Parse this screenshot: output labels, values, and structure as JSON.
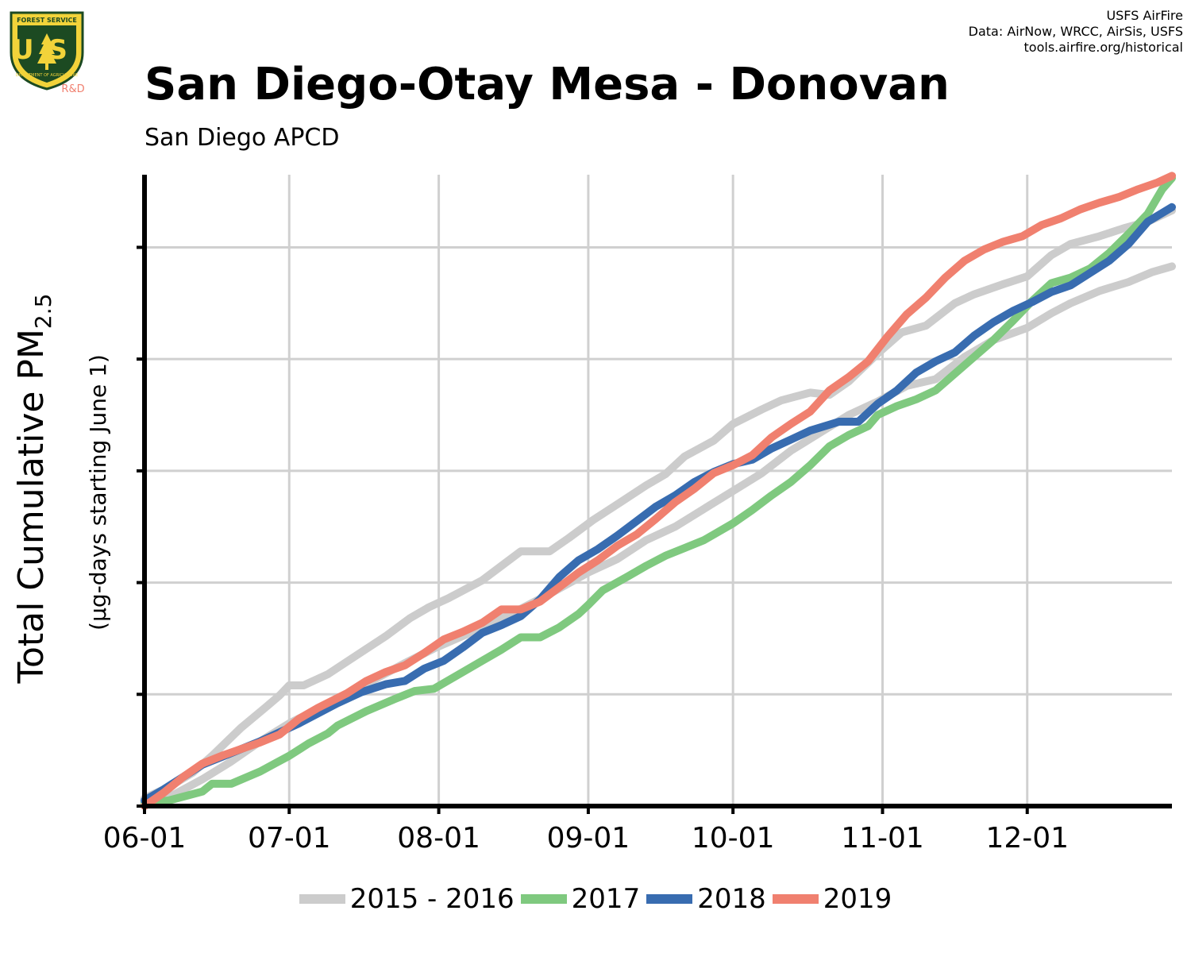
{
  "header": {
    "title": "San Diego-Otay Mesa - Donovan",
    "subtitle": "San Diego APCD",
    "credits": [
      "USFS AirFire",
      "Data: AirNow, WRCC, AirSis, USFS",
      "tools.airfire.org/historical"
    ]
  },
  "logo": {
    "top_text": "FOREST SERVICE",
    "initials": "US",
    "bottom_text": "DEPARTMENT OF AGRICULTURE",
    "tag": "R&D"
  },
  "chart_data": {
    "type": "line",
    "title": "San Diego-Otay Mesa - Donovan",
    "subtitle": "San Diego APCD",
    "ylabel": "Total Cumulative PM",
    "ylabel_sub": "2.5",
    "ylabel_note": "(µg-days starting June 1)",
    "x_ticks": [
      "06-01",
      "07-01",
      "08-01",
      "09-01",
      "10-01",
      "11-01",
      "12-01"
    ],
    "x_tick_days": [
      0,
      30,
      61,
      92,
      122,
      153,
      183
    ],
    "x_range_days": [
      0,
      213
    ],
    "y_range": [
      0,
      5.65
    ],
    "y_ticks": [
      0,
      1,
      2,
      3,
      4,
      5
    ],
    "y_tick_labels_shown": false,
    "grid": true,
    "legend_position": "bottom",
    "series": [
      {
        "name": "2015 - 2016",
        "color": "#cccccc",
        "points": [
          [
            0,
            0.07
          ],
          [
            5,
            0.17
          ],
          [
            10,
            0.3
          ],
          [
            14,
            0.45
          ],
          [
            20,
            0.7
          ],
          [
            25,
            0.88
          ],
          [
            28,
            0.99
          ],
          [
            30,
            1.08
          ],
          [
            33,
            1.08
          ],
          [
            38,
            1.18
          ],
          [
            44,
            1.35
          ],
          [
            50,
            1.52
          ],
          [
            55,
            1.68
          ],
          [
            59,
            1.78
          ],
          [
            63,
            1.86
          ],
          [
            70,
            2.02
          ],
          [
            78,
            2.28
          ],
          [
            84,
            2.28
          ],
          [
            88,
            2.4
          ],
          [
            93,
            2.56
          ],
          [
            98,
            2.7
          ],
          [
            104,
            2.87
          ],
          [
            108,
            2.97
          ],
          [
            112,
            3.13
          ],
          [
            118,
            3.27
          ],
          [
            122,
            3.42
          ],
          [
            128,
            3.55
          ],
          [
            132,
            3.63
          ],
          [
            138,
            3.7
          ],
          [
            142,
            3.68
          ],
          [
            146,
            3.8
          ],
          [
            152,
            4.05
          ],
          [
            157,
            4.24
          ],
          [
            162,
            4.3
          ],
          [
            168,
            4.5
          ],
          [
            172,
            4.58
          ],
          [
            178,
            4.67
          ],
          [
            183,
            4.74
          ],
          [
            188,
            4.93
          ],
          [
            192,
            5.03
          ],
          [
            198,
            5.1
          ],
          [
            203,
            5.17
          ],
          [
            208,
            5.23
          ],
          [
            213,
            5.33
          ]
        ]
      },
      {
        "name": "2015 - 2016",
        "color": "#cccccc",
        "points": [
          [
            0,
            0.03
          ],
          [
            6,
            0.1
          ],
          [
            12,
            0.24
          ],
          [
            18,
            0.4
          ],
          [
            24,
            0.58
          ],
          [
            30,
            0.74
          ],
          [
            36,
            0.87
          ],
          [
            42,
            1.0
          ],
          [
            48,
            1.14
          ],
          [
            54,
            1.28
          ],
          [
            60,
            1.41
          ],
          [
            68,
            1.56
          ],
          [
            76,
            1.72
          ],
          [
            84,
            1.9
          ],
          [
            92,
            2.09
          ],
          [
            98,
            2.21
          ],
          [
            104,
            2.38
          ],
          [
            110,
            2.5
          ],
          [
            116,
            2.66
          ],
          [
            122,
            2.82
          ],
          [
            128,
            2.98
          ],
          [
            134,
            3.18
          ],
          [
            140,
            3.34
          ],
          [
            146,
            3.5
          ],
          [
            152,
            3.62
          ],
          [
            158,
            3.76
          ],
          [
            164,
            3.82
          ],
          [
            170,
            4.02
          ],
          [
            176,
            4.17
          ],
          [
            183,
            4.28
          ],
          [
            188,
            4.41
          ],
          [
            192,
            4.5
          ],
          [
            198,
            4.61
          ],
          [
            204,
            4.69
          ],
          [
            209,
            4.78
          ],
          [
            213,
            4.83
          ]
        ]
      },
      {
        "name": "2017",
        "color": "#7fc97f",
        "points": [
          [
            0,
            0.03
          ],
          [
            5,
            0.05
          ],
          [
            12,
            0.13
          ],
          [
            14,
            0.2
          ],
          [
            18,
            0.2
          ],
          [
            24,
            0.31
          ],
          [
            27,
            0.38
          ],
          [
            30,
            0.45
          ],
          [
            34,
            0.56
          ],
          [
            38,
            0.65
          ],
          [
            40,
            0.72
          ],
          [
            46,
            0.85
          ],
          [
            52,
            0.96
          ],
          [
            56,
            1.03
          ],
          [
            60,
            1.05
          ],
          [
            66,
            1.2
          ],
          [
            70,
            1.3
          ],
          [
            74,
            1.4
          ],
          [
            78,
            1.51
          ],
          [
            82,
            1.51
          ],
          [
            86,
            1.6
          ],
          [
            90,
            1.72
          ],
          [
            92,
            1.8
          ],
          [
            95,
            1.93
          ],
          [
            100,
            2.05
          ],
          [
            104,
            2.15
          ],
          [
            108,
            2.24
          ],
          [
            112,
            2.31
          ],
          [
            116,
            2.38
          ],
          [
            118,
            2.43
          ],
          [
            122,
            2.53
          ],
          [
            126,
            2.65
          ],
          [
            130,
            2.78
          ],
          [
            134,
            2.9
          ],
          [
            138,
            3.05
          ],
          [
            142,
            3.22
          ],
          [
            146,
            3.32
          ],
          [
            150,
            3.4
          ],
          [
            152,
            3.5
          ],
          [
            156,
            3.58
          ],
          [
            160,
            3.64
          ],
          [
            164,
            3.72
          ],
          [
            168,
            3.87
          ],
          [
            172,
            4.02
          ],
          [
            176,
            4.17
          ],
          [
            180,
            4.34
          ],
          [
            184,
            4.52
          ],
          [
            188,
            4.68
          ],
          [
            192,
            4.73
          ],
          [
            196,
            4.81
          ],
          [
            200,
            4.95
          ],
          [
            204,
            5.12
          ],
          [
            208,
            5.3
          ],
          [
            211,
            5.52
          ],
          [
            213,
            5.62
          ]
        ]
      },
      {
        "name": "2018",
        "color": "#386cb0",
        "points": [
          [
            0,
            0.05
          ],
          [
            4,
            0.15
          ],
          [
            8,
            0.26
          ],
          [
            12,
            0.37
          ],
          [
            16,
            0.44
          ],
          [
            20,
            0.51
          ],
          [
            24,
            0.58
          ],
          [
            28,
            0.66
          ],
          [
            32,
            0.74
          ],
          [
            36,
            0.83
          ],
          [
            40,
            0.92
          ],
          [
            45,
            1.02
          ],
          [
            50,
            1.09
          ],
          [
            54,
            1.12
          ],
          [
            58,
            1.23
          ],
          [
            62,
            1.3
          ],
          [
            66,
            1.42
          ],
          [
            70,
            1.55
          ],
          [
            74,
            1.62
          ],
          [
            78,
            1.7
          ],
          [
            82,
            1.85
          ],
          [
            86,
            2.05
          ],
          [
            90,
            2.2
          ],
          [
            94,
            2.3
          ],
          [
            98,
            2.42
          ],
          [
            102,
            2.55
          ],
          [
            106,
            2.68
          ],
          [
            110,
            2.78
          ],
          [
            114,
            2.9
          ],
          [
            118,
            2.99
          ],
          [
            122,
            3.06
          ],
          [
            126,
            3.1
          ],
          [
            130,
            3.2
          ],
          [
            134,
            3.28
          ],
          [
            138,
            3.36
          ],
          [
            144,
            3.44
          ],
          [
            148,
            3.44
          ],
          [
            152,
            3.6
          ],
          [
            156,
            3.72
          ],
          [
            160,
            3.88
          ],
          [
            164,
            3.98
          ],
          [
            168,
            4.06
          ],
          [
            172,
            4.21
          ],
          [
            176,
            4.33
          ],
          [
            180,
            4.43
          ],
          [
            184,
            4.51
          ],
          [
            188,
            4.6
          ],
          [
            192,
            4.66
          ],
          [
            196,
            4.77
          ],
          [
            200,
            4.88
          ],
          [
            204,
            5.03
          ],
          [
            208,
            5.23
          ],
          [
            213,
            5.36
          ]
        ]
      },
      {
        "name": "2019",
        "color": "#f0806f",
        "points": [
          [
            0,
            0.0
          ],
          [
            4,
            0.12
          ],
          [
            8,
            0.26
          ],
          [
            12,
            0.38
          ],
          [
            16,
            0.45
          ],
          [
            20,
            0.51
          ],
          [
            24,
            0.57
          ],
          [
            28,
            0.64
          ],
          [
            32,
            0.78
          ],
          [
            36,
            0.88
          ],
          [
            42,
            1.01
          ],
          [
            46,
            1.12
          ],
          [
            50,
            1.2
          ],
          [
            54,
            1.26
          ],
          [
            58,
            1.37
          ],
          [
            62,
            1.49
          ],
          [
            66,
            1.56
          ],
          [
            70,
            1.64
          ],
          [
            74,
            1.76
          ],
          [
            78,
            1.76
          ],
          [
            82,
            1.83
          ],
          [
            86,
            1.96
          ],
          [
            90,
            2.09
          ],
          [
            94,
            2.2
          ],
          [
            98,
            2.33
          ],
          [
            102,
            2.43
          ],
          [
            106,
            2.57
          ],
          [
            110,
            2.72
          ],
          [
            114,
            2.84
          ],
          [
            118,
            2.98
          ],
          [
            122,
            3.05
          ],
          [
            126,
            3.14
          ],
          [
            130,
            3.3
          ],
          [
            134,
            3.42
          ],
          [
            138,
            3.53
          ],
          [
            142,
            3.72
          ],
          [
            146,
            3.84
          ],
          [
            150,
            3.98
          ],
          [
            154,
            4.2
          ],
          [
            158,
            4.4
          ],
          [
            162,
            4.55
          ],
          [
            166,
            4.73
          ],
          [
            170,
            4.88
          ],
          [
            174,
            4.98
          ],
          [
            178,
            5.05
          ],
          [
            182,
            5.1
          ],
          [
            186,
            5.2
          ],
          [
            190,
            5.26
          ],
          [
            194,
            5.34
          ],
          [
            198,
            5.4
          ],
          [
            202,
            5.45
          ],
          [
            206,
            5.52
          ],
          [
            210,
            5.58
          ],
          [
            213,
            5.64
          ]
        ]
      }
    ]
  }
}
